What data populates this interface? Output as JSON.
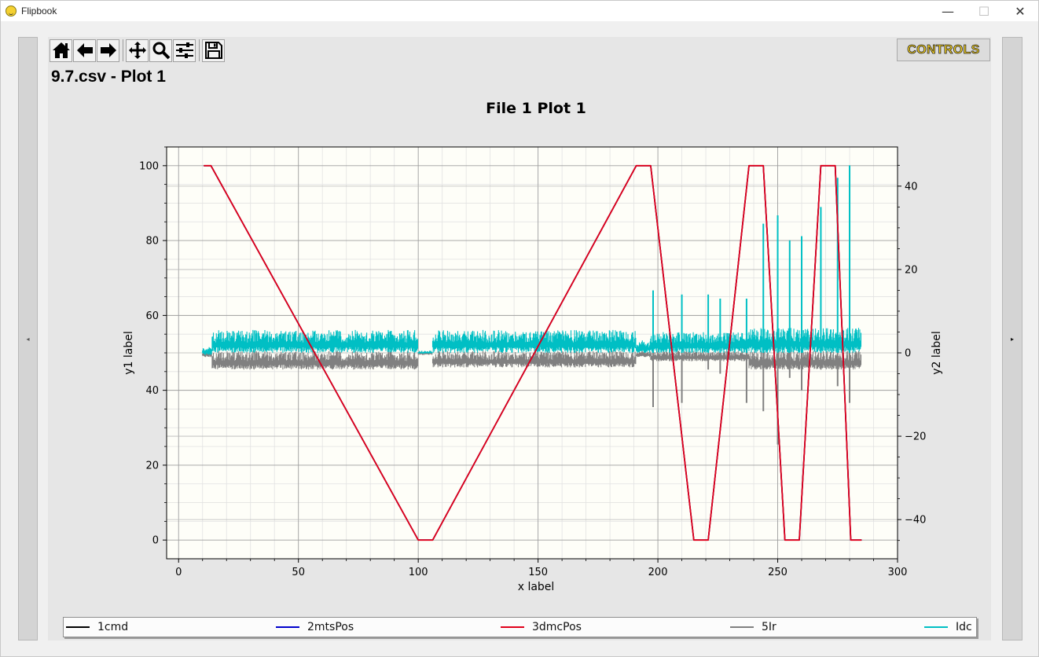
{
  "window": {
    "title": "Flipbook",
    "minimize_glyph": "—",
    "maximize_glyph": "☐",
    "close_glyph": "✕"
  },
  "nav": {
    "prev_glyph": "◂",
    "next_glyph": "▸"
  },
  "toolbar": {
    "buttons": [
      {
        "icon": "home-icon"
      },
      {
        "icon": "back-arrow-icon"
      },
      {
        "icon": "forward-arrow-icon"
      },
      {
        "icon": "pan-icon"
      },
      {
        "icon": "zoom-icon"
      },
      {
        "icon": "configure-subplots-icon"
      },
      {
        "icon": "save-icon"
      }
    ],
    "controls_label": "CONTROLS"
  },
  "page_title": "9.7.csv - Plot 1",
  "chart_data": {
    "type": "line",
    "title": "File 1 Plot 1",
    "xlabel": "x label",
    "ylabel": "y1 label",
    "y2label": "y2 label",
    "xlim": [
      -5,
      300
    ],
    "ylim": [
      -5,
      105
    ],
    "y2lim": [
      -49.4,
      49.4
    ],
    "xticks": [
      0,
      50,
      100,
      150,
      200,
      250,
      300
    ],
    "yticks": [
      0,
      20,
      40,
      60,
      80,
      100
    ],
    "y2ticks": [
      -40,
      -20,
      0,
      20,
      40
    ],
    "grid": true,
    "legend_position": "bottom",
    "series": [
      {
        "name": "1cmd",
        "axis": "y1",
        "color": "#000000",
        "x": [
          10.5,
          13.5,
          100,
          106,
          191,
          197,
          215,
          221,
          238,
          244,
          253,
          259,
          268,
          274,
          280.5,
          285
        ],
        "y": [
          100,
          100,
          0,
          0,
          100,
          100,
          0,
          0,
          100,
          100,
          0,
          0,
          100,
          100,
          0,
          0
        ]
      },
      {
        "name": "2mtsPos",
        "axis": "y1",
        "color": "#0000cc",
        "x": [
          10.5,
          13.5,
          100,
          106,
          191,
          197,
          215,
          221,
          238,
          244,
          253,
          259,
          268,
          274,
          280.5,
          285
        ],
        "y": [
          100,
          100,
          0,
          0,
          100,
          100,
          0,
          0,
          100,
          100,
          0,
          0,
          100,
          100,
          0,
          0
        ]
      },
      {
        "name": "3dmcPos",
        "axis": "y1",
        "color": "#e0001a",
        "x": [
          10.5,
          13.5,
          100,
          106,
          191,
          197,
          215,
          221,
          238,
          244,
          253,
          259,
          268,
          274,
          280.5,
          285
        ],
        "y": [
          100,
          100,
          0,
          0,
          100,
          100,
          0,
          0,
          100,
          100,
          0,
          0,
          100,
          100,
          0,
          0
        ]
      },
      {
        "name": "5Ir",
        "axis": "y2",
        "color": "#808080",
        "band": [
          [
            10,
            14,
            -1,
            0.5
          ],
          [
            14,
            100,
            -4,
            0.5
          ],
          [
            100,
            106,
            -0.5,
            0.5
          ],
          [
            106,
            191,
            -3.5,
            0.5
          ],
          [
            191,
            197,
            -1,
            0.5
          ],
          [
            197,
            238,
            -2,
            0.5
          ],
          [
            238,
            285,
            -4,
            0.5
          ]
        ],
        "spikes": [
          [
            198,
            -13
          ],
          [
            210,
            -12
          ],
          [
            221,
            -4
          ],
          [
            226,
            -5
          ],
          [
            237,
            -12
          ],
          [
            244,
            -14
          ],
          [
            250,
            -22
          ],
          [
            255,
            -6
          ],
          [
            260,
            -9
          ],
          [
            268,
            -4
          ],
          [
            275,
            -8
          ],
          [
            280,
            -12
          ]
        ]
      },
      {
        "name": "Idc",
        "axis": "y2",
        "color": "#00bfc4",
        "band": [
          [
            10,
            14,
            -0.5,
            1.5
          ],
          [
            14,
            100,
            0,
            5.5
          ],
          [
            100,
            106,
            -0.2,
            0.5
          ],
          [
            106,
            191,
            0,
            5.5
          ],
          [
            191,
            197,
            0,
            3
          ],
          [
            197,
            238,
            0,
            5
          ],
          [
            238,
            285,
            0,
            6
          ]
        ],
        "spikes": [
          [
            198,
            15
          ],
          [
            210,
            14
          ],
          [
            221,
            14
          ],
          [
            226,
            13
          ],
          [
            237,
            13
          ],
          [
            244,
            31
          ],
          [
            250,
            33
          ],
          [
            255,
            27
          ],
          [
            260,
            28
          ],
          [
            268,
            35
          ],
          [
            275,
            42
          ],
          [
            280,
            45
          ]
        ]
      }
    ]
  }
}
